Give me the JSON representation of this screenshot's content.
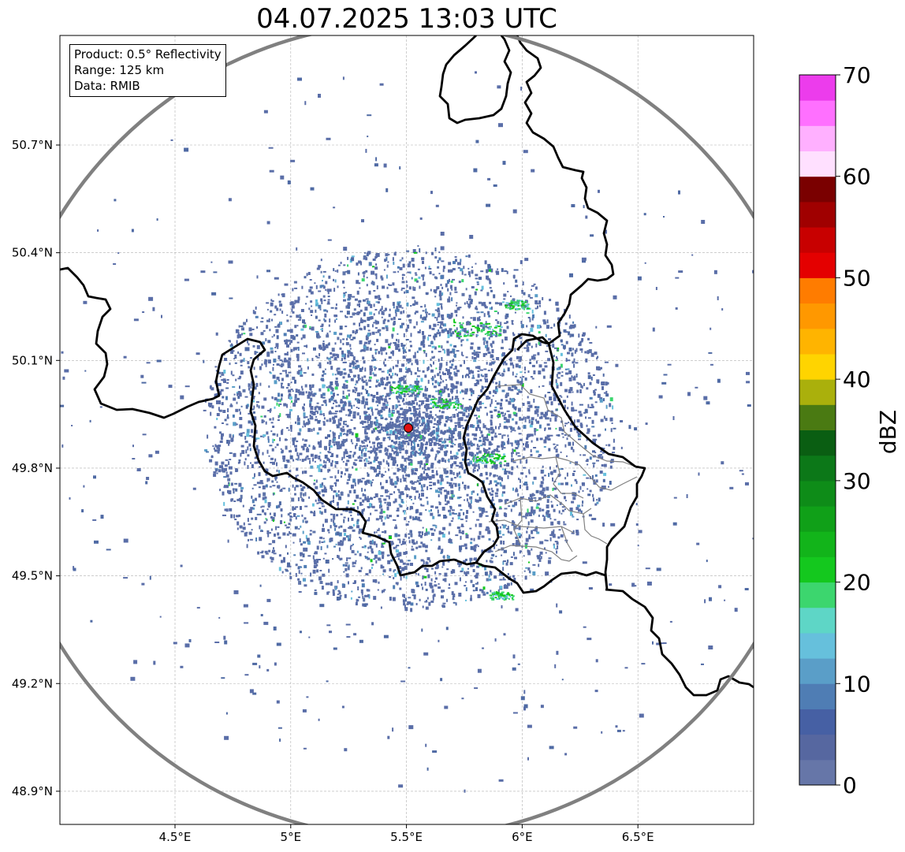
{
  "title": "04.07.2025 13:03 UTC",
  "info": {
    "product": "Product: 0.5° Reflectivity",
    "range": "Range: 125 km",
    "data": "Data: RMIB"
  },
  "colors": {
    "range_ring": "#808080",
    "country_border": "#000000",
    "region_border": "#808080",
    "radar_site": "#e01010",
    "grid": "#b0b0b0"
  },
  "radar_site": {
    "lon": 5.505,
    "lat": 49.914
  },
  "lon_ticks": [
    {
      "value": 4.5,
      "label": "4.5°E"
    },
    {
      "value": 5.0,
      "label": "5°E"
    },
    {
      "value": 5.5,
      "label": "5.5°E"
    },
    {
      "value": 6.0,
      "label": "6°E"
    },
    {
      "value": 6.5,
      "label": "6.5°E"
    }
  ],
  "lat_ticks": [
    {
      "value": 50.7,
      "label": "50.7°N"
    },
    {
      "value": 50.4,
      "label": "50.4°N"
    },
    {
      "value": 50.1,
      "label": "50.1°N"
    },
    {
      "value": 49.8,
      "label": "49.8°N"
    },
    {
      "value": 49.5,
      "label": "49.5°N"
    },
    {
      "value": 49.2,
      "label": "49.2°N"
    },
    {
      "value": 48.9,
      "label": "48.9°N"
    }
  ],
  "colorbar": {
    "label": "dBZ",
    "vmin": 0,
    "vmax": 70,
    "ticks": [
      "0",
      "10",
      "20",
      "30",
      "40",
      "50",
      "60",
      "70"
    ],
    "colors": [
      "#6676a8",
      "#5667a0",
      "#4660a4",
      "#4f7db4",
      "#5a9ec8",
      "#66c0dc",
      "#5ed6c6",
      "#3cd66e",
      "#14c81e",
      "#12b41a",
      "#10a018",
      "#0e8c18",
      "#0c7818",
      "#0a5e12",
      "#4a7a12",
      "#aab00c",
      "#ffd400",
      "#ffb400",
      "#ff9800",
      "#ff7c00",
      "#e40000",
      "#c80000",
      "#a00000",
      "#7a0000",
      "#ffe0ff",
      "#ffb0ff",
      "#ff70ff",
      "#ec3cec"
    ]
  }
}
